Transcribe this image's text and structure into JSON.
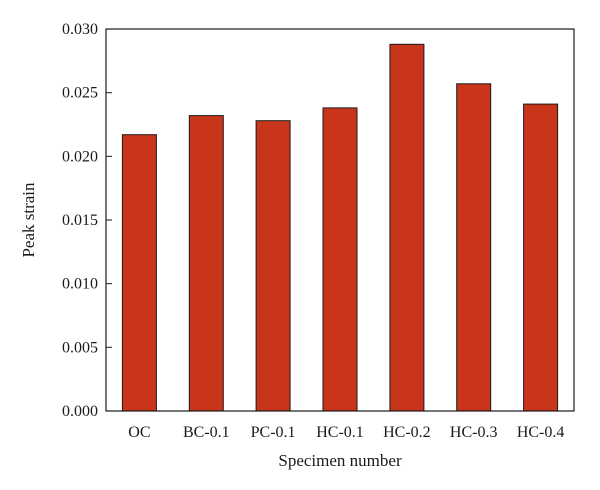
{
  "chart_data": {
    "type": "bar",
    "title": "",
    "xlabel": "Specimen number",
    "ylabel": "Peak strain",
    "categories": [
      "OC",
      "BC-0.1",
      "PC-0.1",
      "HC-0.1",
      "HC-0.2",
      "HC-0.3",
      "HC-0.4"
    ],
    "values": [
      0.0217,
      0.0232,
      0.0228,
      0.0238,
      0.0288,
      0.0257,
      0.0241
    ],
    "ylim": [
      0,
      0.03
    ],
    "yticks": [
      "0.000",
      "0.005",
      "0.010",
      "0.015",
      "0.020",
      "0.025",
      "0.030"
    ],
    "bar_color": "#c8351b",
    "grid": false,
    "legend": "none"
  }
}
